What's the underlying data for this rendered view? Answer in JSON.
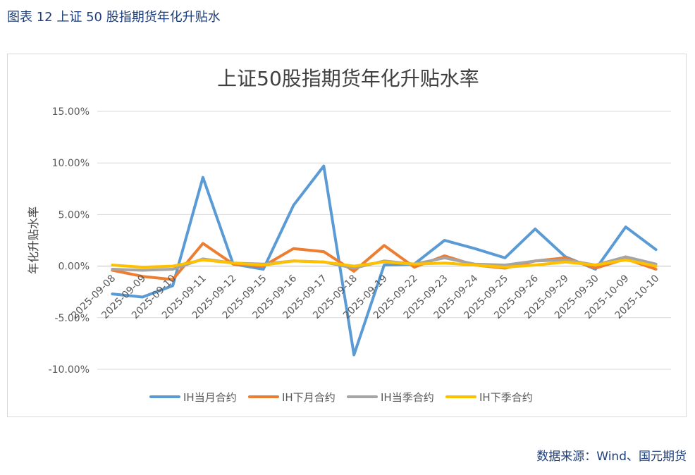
{
  "caption": "图表 12 上证 50 股指期货年化升贴水",
  "source": "数据来源：Wind、国元期货",
  "chart_data": {
    "type": "line",
    "title": "上证50股指期货年化升贴水率",
    "xlabel": "",
    "ylabel": "年化升贴水率",
    "ylim": [
      -0.1,
      0.15
    ],
    "yticks": [
      -0.1,
      -0.05,
      0.0,
      0.05,
      0.1,
      0.15
    ],
    "ytick_labels": [
      "-10.00%",
      "-5.00%",
      "0.00%",
      "5.00%",
      "10.00%",
      "15.00%"
    ],
    "grid": true,
    "legend_position": "bottom",
    "categories": [
      "2025-09-08",
      "2025-09-09",
      "2025-09-10",
      "2025-09-11",
      "2025-09-12",
      "2025-09-15",
      "2025-09-16",
      "2025-09-17",
      "2025-09-18",
      "2025-09-19",
      "2025-09-22",
      "2025-09-23",
      "2025-09-24",
      "2025-09-25",
      "2025-09-26",
      "2025-09-29",
      "2025-09-30",
      "2025-10-09",
      "2025-10-10"
    ],
    "series": [
      {
        "name": "IH当月合约",
        "color": "#5b9bd5",
        "values": [
          -0.027,
          -0.03,
          -0.019,
          0.086,
          0.002,
          -0.003,
          0.059,
          0.097,
          -0.086,
          0.001,
          0.002,
          0.025,
          0.017,
          0.008,
          0.036,
          0.009,
          -0.003,
          0.038,
          0.016
        ]
      },
      {
        "name": "IH下月合约",
        "color": "#ed7d31",
        "values": [
          -0.004,
          -0.01,
          -0.013,
          0.022,
          0.002,
          0.0,
          0.017,
          0.014,
          -0.005,
          0.02,
          -0.001,
          0.01,
          0.001,
          -0.002,
          0.005,
          0.008,
          -0.002,
          0.007,
          -0.003
        ]
      },
      {
        "name": "IH当季合约",
        "color": "#a5a5a5",
        "values": [
          -0.003,
          -0.004,
          -0.003,
          0.007,
          0.003,
          0.002,
          0.005,
          0.004,
          -0.002,
          0.005,
          0.002,
          0.008,
          0.002,
          0.001,
          0.005,
          0.006,
          0.001,
          0.009,
          0.002
        ]
      },
      {
        "name": "IH下季合约",
        "color": "#ffc000",
        "values": [
          0.001,
          -0.001,
          0.0,
          0.006,
          0.003,
          0.001,
          0.005,
          0.004,
          0.0,
          0.004,
          0.002,
          0.003,
          0.001,
          -0.001,
          0.001,
          0.004,
          0.001,
          0.006,
          0.0
        ]
      }
    ]
  }
}
